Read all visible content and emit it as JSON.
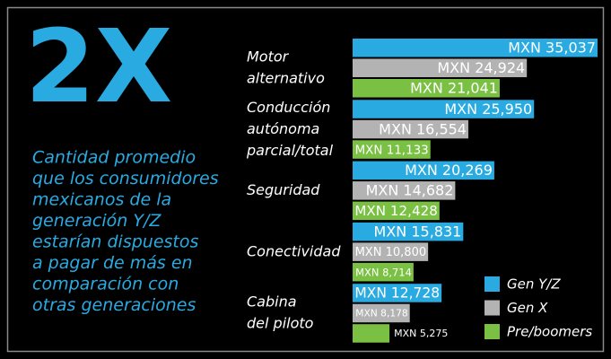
{
  "headline": "2X",
  "description": [
    "Cantidad promedio",
    "que los consumidores",
    "mexicanos de la",
    "generación Y/Z",
    "estarían dispuestos",
    "a pagar de más en",
    "comparación con",
    "otras generaciones"
  ],
  "chart_data": {
    "type": "bar",
    "orientation": "horizontal",
    "categories": [
      [
        "Motor",
        "alternativo"
      ],
      [
        "Conducción",
        "autónoma",
        "parcial/total"
      ],
      [
        "Seguridad"
      ],
      [
        "Conectividad"
      ],
      [
        "Cabina",
        "del piloto"
      ]
    ],
    "series": [
      {
        "name": "Gen Y/Z",
        "color": "#29abe2",
        "values": [
          35037,
          25950,
          20269,
          15831,
          12728
        ],
        "value_labels": [
          "MXN 35,037",
          "MXN 25,950",
          "MXN 20,269",
          "MXN 15,831",
          "MXN 12,728"
        ]
      },
      {
        "name": "Gen X",
        "color": "#b3b3b3",
        "values": [
          24924,
          16554,
          14682,
          10800,
          8178
        ],
        "value_labels": [
          "MXN 24,924",
          "MXN 16,554",
          "MXN 14,682",
          "MXN 10,800",
          "MXN 8,178"
        ]
      },
      {
        "name": "Pre/boomers",
        "color": "#7ac143",
        "values": [
          21041,
          11133,
          12428,
          8714,
          5275
        ],
        "value_labels": [
          "MXN 21,041",
          "MXN 11,133",
          "MXN 12,428",
          "MXN 8,714",
          "MXN 5,275"
        ]
      }
    ],
    "legend": "bottom-right"
  }
}
